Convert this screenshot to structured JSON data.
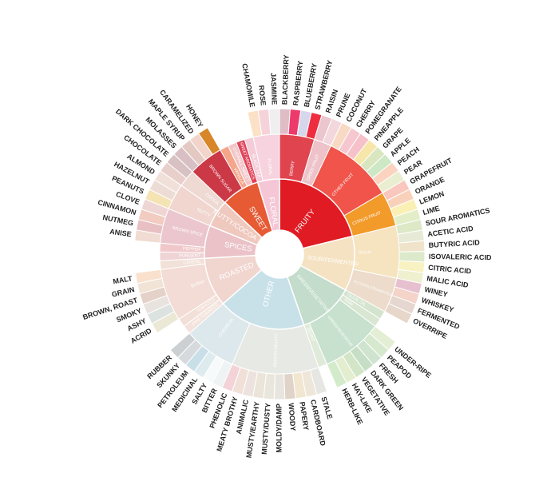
{
  "title": "",
  "center": {
    "cx": 350,
    "cy": 318
  },
  "categories": [
    {
      "name": "FRUITY",
      "color": "#E01B24",
      "children": [
        {
          "name": "BERRY",
          "color": "#E0454F",
          "children": [
            {
              "name": "BLACKBERRY",
              "color": "#E0BDC6"
            },
            {
              "name": "RASPBERRY",
              "color": "#EE3A6A"
            },
            {
              "name": "BLUEBERRY",
              "color": "#D6D6EC"
            },
            {
              "name": "STRAWBERRY",
              "color": "#EE2E40"
            }
          ]
        },
        {
          "name": "DRIED FRUIT",
          "color": "#EDC2C8",
          "children": [
            {
              "name": "RAISIN",
              "color": "#EBC6CE"
            },
            {
              "name": "PRUNE",
              "color": "#F3D7DD"
            }
          ]
        },
        {
          "name": "OTHER FRUIT",
          "color": "#F0544A",
          "children": [
            {
              "name": "COCONUT",
              "color": "#F8D9C4"
            },
            {
              "name": "CHERRY",
              "color": "#F6C7CF"
            },
            {
              "name": "POMEGRANATE",
              "color": "#F6C1C8"
            },
            {
              "name": "PINEAPPLE",
              "color": "#F7E6A9"
            },
            {
              "name": "GRAPE",
              "color": "#D9E6C0"
            },
            {
              "name": "APPLE",
              "color": "#CDE8C4"
            },
            {
              "name": "PEACH",
              "color": "#FBD3BF"
            },
            {
              "name": "PEAR",
              "color": "#E8EECF"
            }
          ]
        },
        {
          "name": "CITRUS FRUIT",
          "color": "#F29A2A",
          "children": [
            {
              "name": "GRAPEFRUIT",
              "color": "#F9C7BD"
            },
            {
              "name": "ORANGE",
              "color": "#F9D1BA"
            },
            {
              "name": "LEMON",
              "color": "#FAF0B5"
            },
            {
              "name": "LIME",
              "color": "#E2EEC7"
            }
          ]
        }
      ]
    },
    {
      "name": "SOUR/FERMENTED",
      "color": "#F5E2C2",
      "children": [
        {
          "name": "SOUR",
          "color": "#F6E3BF",
          "children": [
            {
              "name": "SOUR AROMATICS",
              "color": "#DCE8C6"
            },
            {
              "name": "ACETIC ACID",
              "color": "#E6EAD6"
            },
            {
              "name": "BUTYRIC ACID",
              "color": "#EFE4C9"
            },
            {
              "name": "ISOVALERIC ACID",
              "color": "#DDE9CB"
            },
            {
              "name": "CITRIC ACID",
              "color": "#F8F1C2"
            },
            {
              "name": "MALIC ACID",
              "color": "#EEF0CF"
            }
          ]
        },
        {
          "name": "ALCOHOL/FERMENTED",
          "color": "#EDDCCB",
          "children": [
            {
              "name": "WINEY",
              "color": "#E7C0CF"
            },
            {
              "name": "WHISKEY",
              "color": "#F4D3C8"
            },
            {
              "name": "FERMENTED",
              "color": "#E5D7CF"
            },
            {
              "name": "OVERRIPE",
              "color": "#E6D7CA"
            }
          ]
        }
      ]
    },
    {
      "name": "GREEN/VEGETATIVE",
      "color": "#C3DCCB",
      "children": [
        {
          "name": "OLIVE OIL",
          "color": "#D4E4CF",
          "children": []
        },
        {
          "name": "RAW",
          "color": "#D8E6D2",
          "children": []
        },
        {
          "name": "GREEN/VEGETATIVE",
          "color": "#C7E1CE",
          "children": [
            {
              "name": "UNDER-RIPE",
              "color": "#E4EED4"
            },
            {
              "name": "PEAPOD",
              "color": "#D6E9CF"
            },
            {
              "name": "FRESH",
              "color": "#CFE4CE"
            },
            {
              "name": "DARK GREEN",
              "color": "#C7DEC6"
            },
            {
              "name": "VEGETATIVE",
              "color": "#D2E6C7"
            },
            {
              "name": "HAY-LIKE",
              "color": "#E3EDCF"
            },
            {
              "name": "HERB-LIKE",
              "color": "#D4EBCB"
            }
          ]
        },
        {
          "name": "BEANY",
          "color": "#E0EAD8",
          "children": []
        }
      ]
    },
    {
      "name": "OTHER",
      "color": "#C8E1E9",
      "children": [
        {
          "name": "PAPERY/MUSTY",
          "color": "#E7E9E4",
          "children": [
            {
              "name": "STALE",
              "color": "#E6E6E3"
            },
            {
              "name": "CARDBOARD",
              "color": "#EEE6D8"
            },
            {
              "name": "PAPERY",
              "color": "#F1E7D1"
            },
            {
              "name": "WOODY",
              "color": "#E0D3C8"
            },
            {
              "name": "MOLDY/DAMP",
              "color": "#E7E5DE"
            },
            {
              "name": "MUSTY/DUSTY",
              "color": "#E9E6DD"
            },
            {
              "name": "MUSTY/EARTHY",
              "color": "#EAE4D9"
            },
            {
              "name": "ANIMALIC",
              "color": "#EDE3DE"
            },
            {
              "name": "MEATY BROTHY",
              "color": "#F1E0D8"
            },
            {
              "name": "PHENOLIC",
              "color": "#F3D3D7"
            }
          ]
        },
        {
          "name": "CHEMICAL",
          "color": "#DCE8EC",
          "children": [
            {
              "name": "BITTER",
              "color": "#EFF3F3"
            },
            {
              "name": "SALTY",
              "color": "#F7FAFA"
            },
            {
              "name": "MEDICINAL",
              "color": "#DDEBEE"
            },
            {
              "name": "PETROLEUM",
              "color": "#C9DFE8"
            },
            {
              "name": "SKUNKY",
              "color": "#D7DADC"
            },
            {
              "name": "RUBBER",
              "color": "#CDD0D2"
            }
          ]
        }
      ]
    },
    {
      "name": "ROASTED",
      "color": "#F1D5CF",
      "children": [
        {
          "name": "PIPE TOBACCO",
          "color": "#F3E3DC",
          "children": []
        },
        {
          "name": "TOBACCO",
          "color": "#F2E0D8",
          "children": []
        },
        {
          "name": "BURNT",
          "color": "#F3DCD5",
          "children": [
            {
              "name": "ACRID",
              "color": "#ECE8D6"
            },
            {
              "name": "ASHY",
              "color": "#DCE2E0"
            },
            {
              "name": "SMOKY",
              "color": "#E9E3DF"
            },
            {
              "name": "BROWN, ROAST",
              "color": "#E4D1C7"
            },
            {
              "name": "GRAIN",
              "color": "#F1E4D6"
            },
            {
              "name": "MALT",
              "color": "#F9E1CD"
            }
          ]
        },
        {
          "name": "CEREAL",
          "color": "#F2E1D8",
          "children": []
        }
      ]
    },
    {
      "name": "SPICES",
      "color": "#EAC2C8",
      "children": [
        {
          "name": "PUNGENT",
          "color": "#EFD3D5",
          "children": []
        },
        {
          "name": "PEPPER",
          "color": "#F0C8CA",
          "children": []
        },
        {
          "name": "BROWN SPICE",
          "color": "#EBC6CE",
          "children": [
            {
              "name": "ANISE",
              "color": "#F0DCD2"
            },
            {
              "name": "NUTMEG",
              "color": "#E8C0C4"
            },
            {
              "name": "CINNAMON",
              "color": "#F2CBC1"
            },
            {
              "name": "CLOVE",
              "color": "#EFD5D3"
            }
          ]
        }
      ]
    },
    {
      "name": "NUTTY/COCOA",
      "color": "#EFC8BE",
      "children": [
        {
          "name": "NUTTY",
          "color": "#F0D6CF",
          "children": [
            {
              "name": "PEANUTS",
              "color": "#F4E3B3"
            },
            {
              "name": "HAZELNUT",
              "color": "#ECDCD5"
            },
            {
              "name": "ALMOND",
              "color": "#F1E0DA"
            }
          ]
        },
        {
          "name": "COCOA",
          "color": "#EED9D3",
          "children": [
            {
              "name": "CHOCOLATE",
              "color": "#E9CFCB"
            },
            {
              "name": "DARK CHOCOLATE",
              "color": "#D8C1C3"
            }
          ]
        }
      ]
    },
    {
      "name": "SWEET",
      "color": "#E65A34",
      "children": [
        {
          "name": "BROWN SUGAR",
          "color": "#CB3846",
          "children": [
            {
              "name": "MOLASSES",
              "color": "#D8BFC4"
            },
            {
              "name": "MAPLE SYRUP",
              "color": "#E4C9C3"
            },
            {
              "name": "CARAMELIZED",
              "color": "#F2D4CB"
            },
            {
              "name": "HONEY",
              "color": "#D8862A"
            }
          ]
        },
        {
          "name": "VANILLA",
          "color": "#F4A58A",
          "children": []
        },
        {
          "name": "OVERALL SWEET",
          "color": "#F2C4C6",
          "children": []
        },
        {
          "name": "SWEET AROMATICS",
          "color": "#E0455A",
          "children": []
        }
      ]
    },
    {
      "name": "FLORAL",
      "color": "#F5C6D6",
      "children": [
        {
          "name": "BLACK TEA",
          "color": "#F3CCD7",
          "children": []
        },
        {
          "name": "FLORAL",
          "color": "#F7D3DF",
          "children": [
            {
              "name": "CHAMOMILE",
              "color": "#FBE1C6"
            },
            {
              "name": "ROSE",
              "color": "#F6D3DA"
            },
            {
              "name": "JASMINE",
              "color": "#EFEFEF"
            }
          ]
        }
      ]
    }
  ]
}
